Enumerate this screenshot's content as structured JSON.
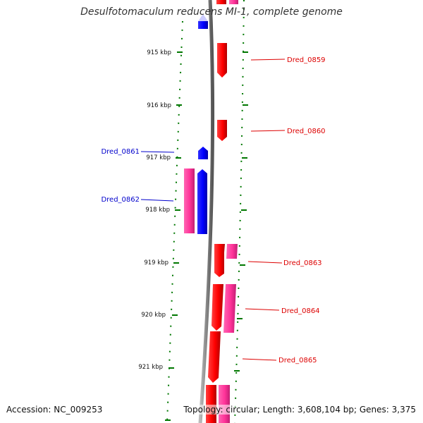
{
  "title": "Desulfotomaculum reducens MI-1, complete genome",
  "footer": {
    "accession": "Accession: NC_009253",
    "summary": "Topology: circular; Length: 3,608,104 bp; Genes: 3,375"
  },
  "colors": {
    "reverse_label": "#0000cc",
    "forward_label": "#dd0000",
    "tick": "#007700",
    "backbone": "#808080",
    "cds_red": "#ff0000",
    "cds_pink": "#ff3399",
    "cds_blue": "#0000ff"
  },
  "ticks": [
    {
      "label": "915 kbp"
    },
    {
      "label": "916 kbp"
    },
    {
      "label": "917 kbp"
    },
    {
      "label": "918 kbp"
    },
    {
      "label": "919 kbp"
    },
    {
      "label": "920 kbp"
    },
    {
      "label": "921 kbp"
    }
  ],
  "gene_labels": [
    {
      "label": "Dred_0859",
      "strand": "forward"
    },
    {
      "label": "Dred_0860",
      "strand": "forward"
    },
    {
      "label": "Dred_0861",
      "strand": "reverse"
    },
    {
      "label": "Dred_0862",
      "strand": "reverse"
    },
    {
      "label": "Dred_0863",
      "strand": "forward"
    },
    {
      "label": "Dred_0864",
      "strand": "forward"
    },
    {
      "label": "Dred_0865",
      "strand": "forward"
    }
  ]
}
